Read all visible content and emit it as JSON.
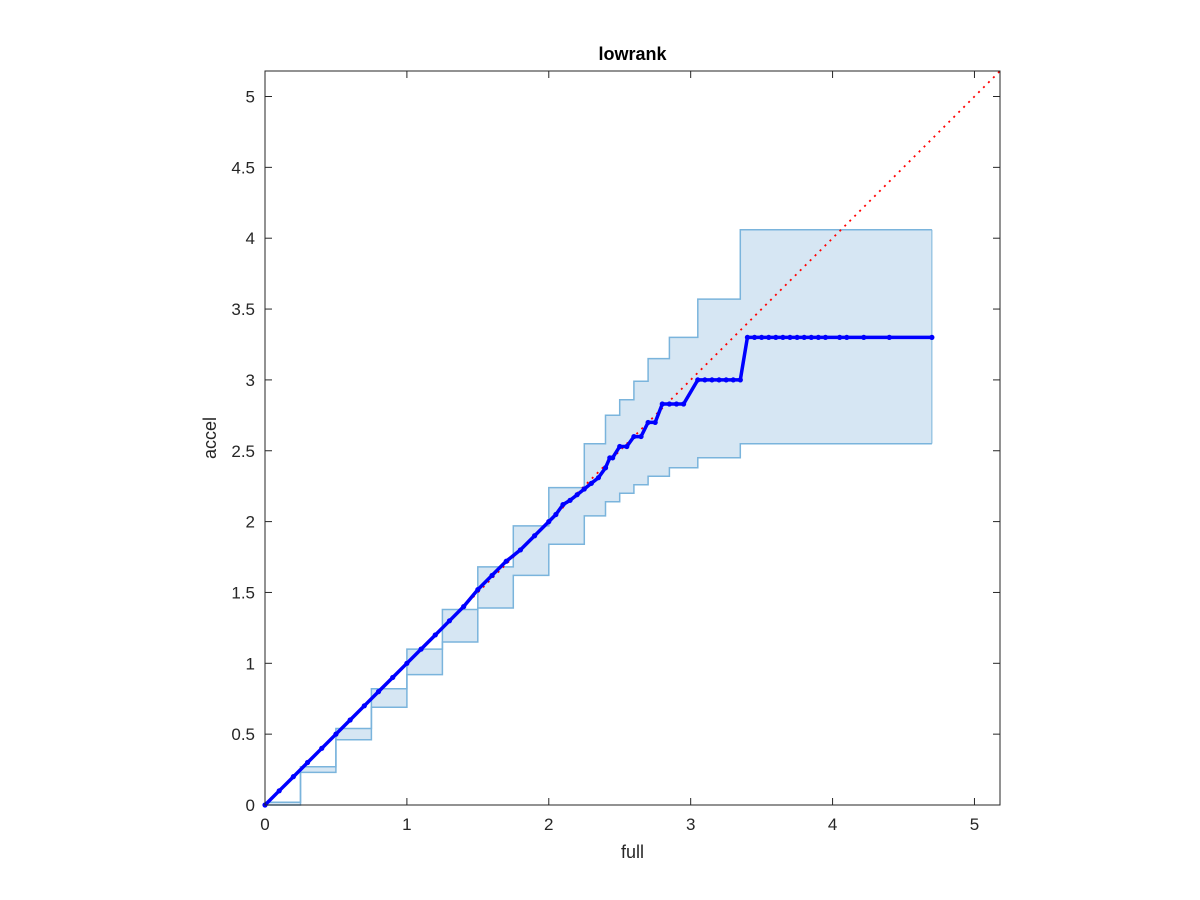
{
  "chart_data": {
    "type": "scatter",
    "title": "lowrank",
    "xlabel": "full",
    "ylabel": "accel",
    "xlim": [
      0,
      5.18
    ],
    "ylim": [
      0,
      5.18
    ],
    "x_ticks": [
      "0",
      "1",
      "2",
      "3",
      "4",
      "5"
    ],
    "y_ticks": [
      "0",
      "0.5",
      "1",
      "1.5",
      "2",
      "2.5",
      "3",
      "3.5",
      "4",
      "4.5",
      "5"
    ],
    "grid": false,
    "legend": "none",
    "colors": {
      "points": "#0000ff",
      "reference_line": "#ff0000",
      "band_fill": "#d6e6f3",
      "band_edge": "#7ab4dc",
      "axes": "#262626"
    },
    "series": [
      {
        "type": "band",
        "x": [
          0,
          0.25,
          0.5,
          0.75,
          1.0,
          1.25,
          1.5,
          1.75,
          2.0,
          2.25,
          2.4,
          2.5,
          2.6,
          2.7,
          2.85,
          3.05,
          3.35,
          4.7
        ],
        "upper": [
          0.02,
          0.27,
          0.54,
          0.82,
          1.1,
          1.38,
          1.68,
          1.97,
          2.24,
          2.55,
          2.75,
          2.86,
          2.99,
          3.15,
          3.3,
          3.57,
          4.06,
          4.06
        ],
        "lower": [
          0,
          0.23,
          0.46,
          0.69,
          0.92,
          1.15,
          1.39,
          1.62,
          1.84,
          2.04,
          2.14,
          2.2,
          2.26,
          2.32,
          2.38,
          2.45,
          2.55,
          2.55
        ]
      },
      {
        "type": "line",
        "style": "dotted",
        "x": [
          0,
          5.18
        ],
        "y": [
          0,
          5.18
        ]
      },
      {
        "type": "scatter",
        "x": [
          0.0,
          0.1,
          0.2,
          0.3,
          0.4,
          0.5,
          0.6,
          0.7,
          0.8,
          0.9,
          1.0,
          1.1,
          1.2,
          1.3,
          1.4,
          1.5,
          1.6,
          1.7,
          1.8,
          1.9,
          2.0,
          2.05,
          2.1,
          2.15,
          2.2,
          2.25,
          2.3,
          2.35,
          2.4,
          2.43,
          2.45,
          2.5,
          2.55,
          2.6,
          2.65,
          2.7,
          2.75,
          2.8,
          2.85,
          2.9,
          2.95,
          3.05,
          3.1,
          3.15,
          3.2,
          3.25,
          3.3,
          3.35,
          3.4,
          3.45,
          3.5,
          3.55,
          3.6,
          3.65,
          3.7,
          3.75,
          3.8,
          3.85,
          3.9,
          3.95,
          4.05,
          4.1,
          4.22,
          4.4,
          4.7
        ],
        "y": [
          0.0,
          0.1,
          0.2,
          0.3,
          0.4,
          0.5,
          0.6,
          0.7,
          0.8,
          0.9,
          1.0,
          1.1,
          1.2,
          1.3,
          1.4,
          1.52,
          1.62,
          1.72,
          1.8,
          1.9,
          2.0,
          2.05,
          2.12,
          2.15,
          2.19,
          2.23,
          2.27,
          2.31,
          2.38,
          2.45,
          2.45,
          2.53,
          2.53,
          2.6,
          2.6,
          2.7,
          2.7,
          2.83,
          2.83,
          2.83,
          2.83,
          3.0,
          3.0,
          3.0,
          3.0,
          3.0,
          3.0,
          3.0,
          3.3,
          3.3,
          3.3,
          3.3,
          3.3,
          3.3,
          3.3,
          3.3,
          3.3,
          3.3,
          3.3,
          3.3,
          3.3,
          3.3,
          3.3,
          3.3,
          3.3
        ]
      }
    ]
  }
}
